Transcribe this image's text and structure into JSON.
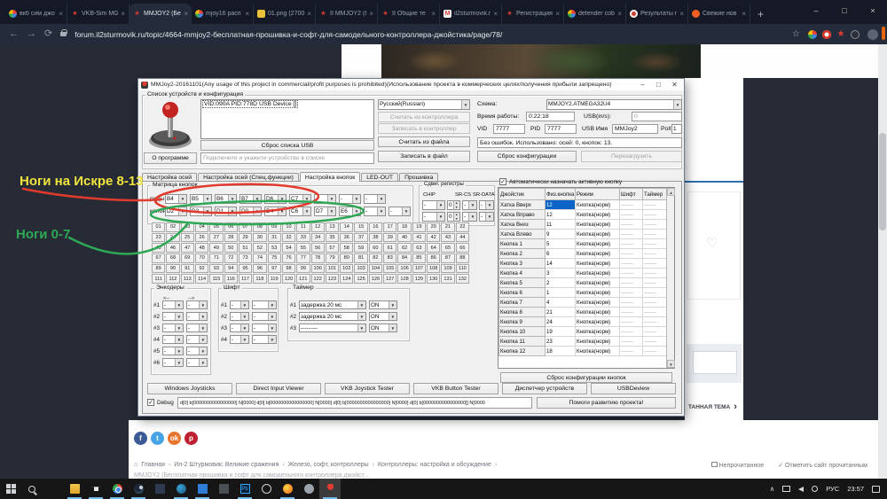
{
  "icons": {
    "back": "←",
    "forward": "→",
    "reload": "⟳",
    "star": "☆",
    "close": "×",
    "dropdown": "▼",
    "spin_up": "▲",
    "spin_down": "▼",
    "check": "✓",
    "home": "⌂",
    "heart": "♡",
    "chevron_right": "›",
    "chevron_up": "∧",
    "tab_close": "×",
    "scroll_up": "▲",
    "scroll_down": "▼",
    "crumb_sep": "›"
  },
  "browser": {
    "tabs": [
      {
        "icon": "google",
        "label": "вкб сим джо"
      },
      {
        "icon": "star",
        "label": "VKB-Sim MG"
      },
      {
        "icon": "star",
        "label": "MMJOY2 (Бе",
        "active": true
      },
      {
        "icon": "google",
        "label": "mjoy16 расп"
      },
      {
        "icon": "image",
        "label": "01.png (2700"
      },
      {
        "icon": "star",
        "label": "II MMJOY2 (б"
      },
      {
        "icon": "star",
        "label": "II Общие те"
      },
      {
        "icon": "gmail",
        "label": "il2sturmovik.r"
      },
      {
        "icon": "star",
        "label": "Регистрация"
      },
      {
        "icon": "google",
        "label": "defender cob"
      },
      {
        "icon": "ext",
        "label": "Результаты п"
      },
      {
        "icon": "news",
        "label": "Свежие нов"
      }
    ],
    "new_tab": "+",
    "url": "forum.il2sturmovik.ru/topic/4664-mmjoy2-бесплатная-прошивка-и-софт-для-самодельного-контроллера-джойстика/page/78/",
    "window_controls": [
      "–",
      "□",
      "×"
    ]
  },
  "window": {
    "title": "MMJoy2-20161101(Any usage of this project in commercial/profit purposes is prohibited)(Использование проекта в коммерческих целях/получения прибыли запрещено)",
    "controls": [
      "–",
      "□",
      "✕"
    ],
    "device_group": {
      "label": "Список устройств и конфигурация",
      "device_item": "VID:090A PID:778D USB Device  []",
      "reset_usb": "Сброс списка USB",
      "about": "О программе",
      "device_hint": "Подключите и укажите устройство в списке",
      "language": "Русский(Russian)",
      "read_controller": "Считать из контроллера",
      "write_controller": "Записать в контроллер",
      "read_file": "Считать из файла",
      "write_file": "Записать в файл",
      "scheme_label": "Схема:",
      "scheme_value": "MMJOY2.ATMEGA32U4",
      "uptime_label": "Время работы:",
      "uptime_value": "0:22:18",
      "usb_rate_label": "USB(in/s):",
      "usb_rate_value": "0",
      "vid_label": "VID",
      "vid": "7777",
      "pid_label": "PID",
      "pid": "7777",
      "usb_name_label": "USB Имя",
      "usb_name": "MMJoy2",
      "poll_label": "Poll",
      "poll": "1",
      "status": "Без ошибок. Использовано: осей: 0, кнопок: 13.",
      "reset_config": "Сброс конфигурации",
      "reboot": "Перезагрузить"
    },
    "tabs": [
      "Настройка осей",
      "Настройка осей (Спец.функции)",
      "Настройка кнопок",
      "LED-OUT",
      "Прошивка"
    ],
    "active_tab": "Настройка кнопок",
    "matrix": {
      "label": "Матрица кнопок",
      "rows_label": "ряды",
      "cols_label": "колонки",
      "rows": [
        "B4",
        "B5",
        "B6",
        "B7",
        "D6",
        "C7",
        "-",
        "-",
        "-"
      ],
      "cols": [
        "D2",
        "D3",
        "D1",
        "D0",
        "D4",
        "C6",
        "D7",
        "E6",
        "-",
        "-"
      ],
      "grid_count": 132
    },
    "shift_registers": {
      "label": "Сдвиг. регистры",
      "chip_label": "CHIP",
      "cs_label": "SR-CS",
      "data_label": "SR-DATA",
      "rows": [
        {
          "chip": "-",
          "count": "0",
          "cs": "-",
          "data": "-"
        },
        {
          "chip": "-",
          "count": "0",
          "cs": "-",
          "data": "-"
        }
      ]
    },
    "auto_assign": "Автоматически назначать активную кнопку",
    "table": {
      "headers": [
        "Джойстик",
        "Физ.кнопка",
        "Режим",
        "Шифт",
        "Таймер"
      ],
      "dash": "-------",
      "rows": [
        {
          "name": "Хатка Вверх",
          "btn": "12",
          "mode": "Кнопка(норм)",
          "selected": true
        },
        {
          "name": "Хатка Вправо",
          "btn": "12",
          "mode": "Кнопка(норм)"
        },
        {
          "name": "Хатка Вниз",
          "btn": "11",
          "mode": "Кнопка(норм)"
        },
        {
          "name": "Хатка Влево",
          "btn": "9",
          "mode": "Кнопка(норм)"
        },
        {
          "name": "Кнопка 1",
          "btn": "5",
          "mode": "Кнопка(норм)"
        },
        {
          "name": "Кнопка 2",
          "btn": "6",
          "mode": "Кнопка(норм)"
        },
        {
          "name": "Кнопка 3",
          "btn": "14",
          "mode": "Кнопка(норм)"
        },
        {
          "name": "Кнопка 4",
          "btn": "3",
          "mode": "Кнопка(норм)"
        },
        {
          "name": "Кнопка 5",
          "btn": "2",
          "mode": "Кнопка(норм)"
        },
        {
          "name": "Кнопка 6",
          "btn": "1",
          "mode": "Кнопка(норм)"
        },
        {
          "name": "Кнопка 7",
          "btn": "4",
          "mode": "Кнопка(норм)"
        },
        {
          "name": "Кнопка 8",
          "btn": "21",
          "mode": "Кнопка(норм)"
        },
        {
          "name": "Кнопка 9",
          "btn": "24",
          "mode": "Кнопка(норм)"
        },
        {
          "name": "Кнопка 10",
          "btn": "19",
          "mode": "Кнопка(норм)"
        },
        {
          "name": "Кнопка 11",
          "btn": "23",
          "mode": "Кнопка(норм)"
        },
        {
          "name": "Кнопка 12",
          "btn": "18",
          "mode": "Кнопка(норм)"
        }
      ]
    },
    "reset_buttons_config": "Сброс конфигурации кнопок",
    "encoders": {
      "label": "Энкодеры",
      "left_arrow": "<--",
      "right_arrow": "-->",
      "rows": [
        "#1",
        "#2",
        "#3",
        "#4",
        "#5",
        "#6"
      ],
      "value": "-"
    },
    "shift_group": {
      "label": "Шифт",
      "rows": [
        "#1",
        "#2",
        "#3",
        "#4"
      ],
      "value": "-"
    },
    "timer_group": {
      "label": "Таймер",
      "rows": [
        {
          "n": "#1",
          "delay": "задержка 20 мс",
          "state": "ON"
        },
        {
          "n": "#2",
          "delay": "задержка 20 мс",
          "state": "ON"
        },
        {
          "n": "#3",
          "delay": "---------",
          "state": "ON"
        }
      ]
    },
    "bottom_buttons": [
      "Windows Joysticks",
      "Direct Input Viewer",
      "VKB Joystick Tester",
      "VKB Button Tester",
      "Диспетчер устройств",
      "USBDeview"
    ],
    "debug_label": "Debug",
    "debug_value": "d[0] b[0000000000000000] N[0000]    d[0] b[0000000000000000] N[0000]    d[0] b[0000000000000000] N[0000]    d[0] b[0000000000000000]] N[0000",
    "donate": "Помоги развитию проекта!"
  },
  "annotations": {
    "label_top": "Ноги на Искре 8-13",
    "label_bottom": "Ноги 0-7",
    "yellow": "#f0e43c",
    "red": "#e23b2e",
    "green": "#2fa855"
  },
  "forum": {
    "breadcrumb_home": "Главная",
    "breadcrumb": [
      "Ил-2 Штурмовик: Великие сражения",
      "Железо, софт, контроллеры",
      "Контроллеры: настройка и обсуждение"
    ],
    "topic_title": "MMJOY2 (Бесплатная прошивка и софт для самодельного контроллера джойст...",
    "unread": "Непрочитанное",
    "mark_read": "Отметить сайт прочитанным",
    "next_topic": "ТАННАЯ ТЕМА",
    "social": [
      {
        "name": "facebook",
        "glyph": "f",
        "color": "#3a5a98"
      },
      {
        "name": "twitter",
        "glyph": "t",
        "color": "#45a3e6"
      },
      {
        "name": "odnoklassniki",
        "glyph": "ok",
        "color": "#e8732a"
      },
      {
        "name": "pinterest",
        "glyph": "p",
        "color": "#bd2030"
      }
    ]
  },
  "taskbar": {
    "lang": "РУС",
    "time": "23:57",
    "icons": [
      {
        "n": "start"
      },
      {
        "n": "search"
      },
      {
        "n": "task-view"
      },
      {
        "n": "explorer",
        "run": true
      },
      {
        "n": "store",
        "run": true
      },
      {
        "n": "chrome",
        "run": true
      },
      {
        "n": "steam",
        "run": true
      },
      {
        "n": "vs"
      },
      {
        "n": "edge",
        "run": true
      },
      {
        "n": "photos",
        "run": true
      },
      {
        "n": "snip"
      },
      {
        "n": "ps",
        "run": true,
        "text": "Pb"
      },
      {
        "n": "settings"
      },
      {
        "n": "firefox",
        "run": true
      },
      {
        "n": "steam2"
      },
      {
        "n": "mmjoy",
        "run": true,
        "active": true
      }
    ]
  }
}
